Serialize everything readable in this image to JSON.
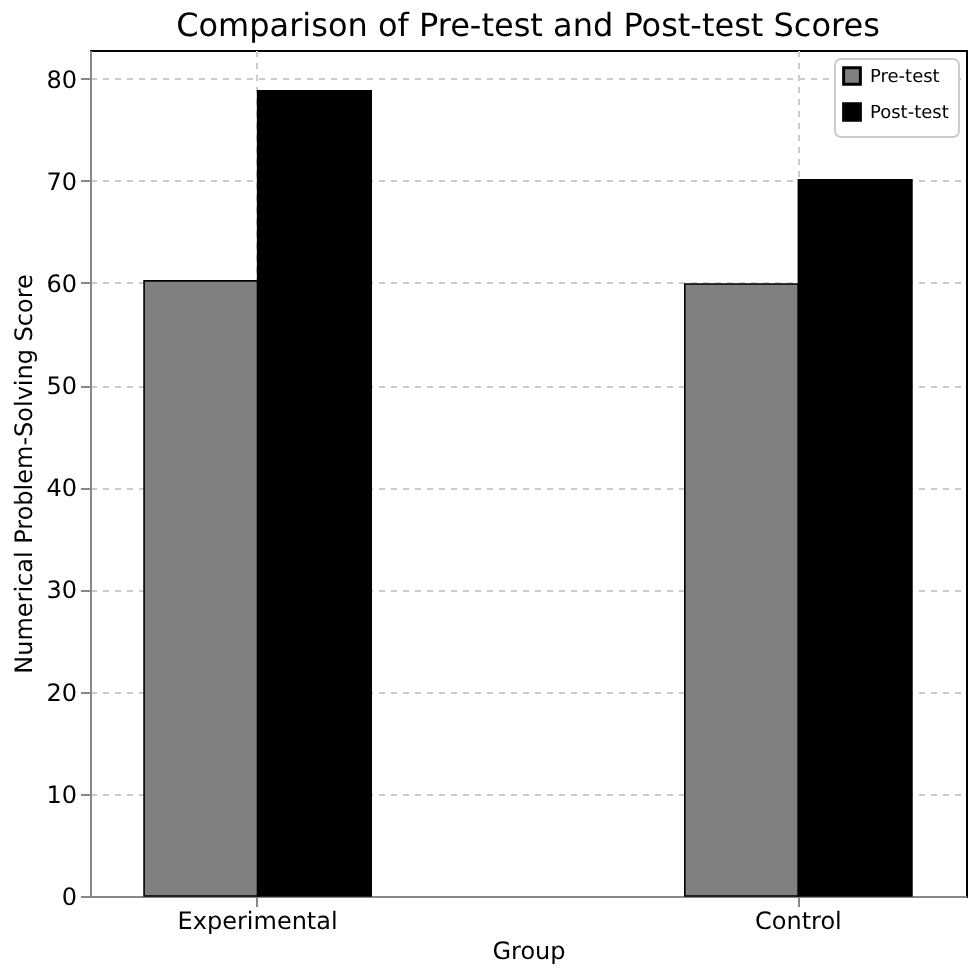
{
  "chart_data": {
    "type": "bar",
    "title": "Comparison of Pre-test and Post-test Scores",
    "xlabel": "Group",
    "ylabel": "Numerical Problem-Solving Score",
    "categories": [
      "Experimental",
      "Control"
    ],
    "series": [
      {
        "name": "Pre-test",
        "color": "#808080",
        "values": [
          60.2,
          59.9
        ]
      },
      {
        "name": "Post-test",
        "color": "#000000",
        "values": [
          78.8,
          70.1
        ]
      }
    ],
    "ylim": [
      0,
      82.8
    ],
    "yticks": [
      0,
      10,
      20,
      30,
      40,
      50,
      60,
      70,
      80
    ],
    "grid": true,
    "legend": "top right"
  }
}
